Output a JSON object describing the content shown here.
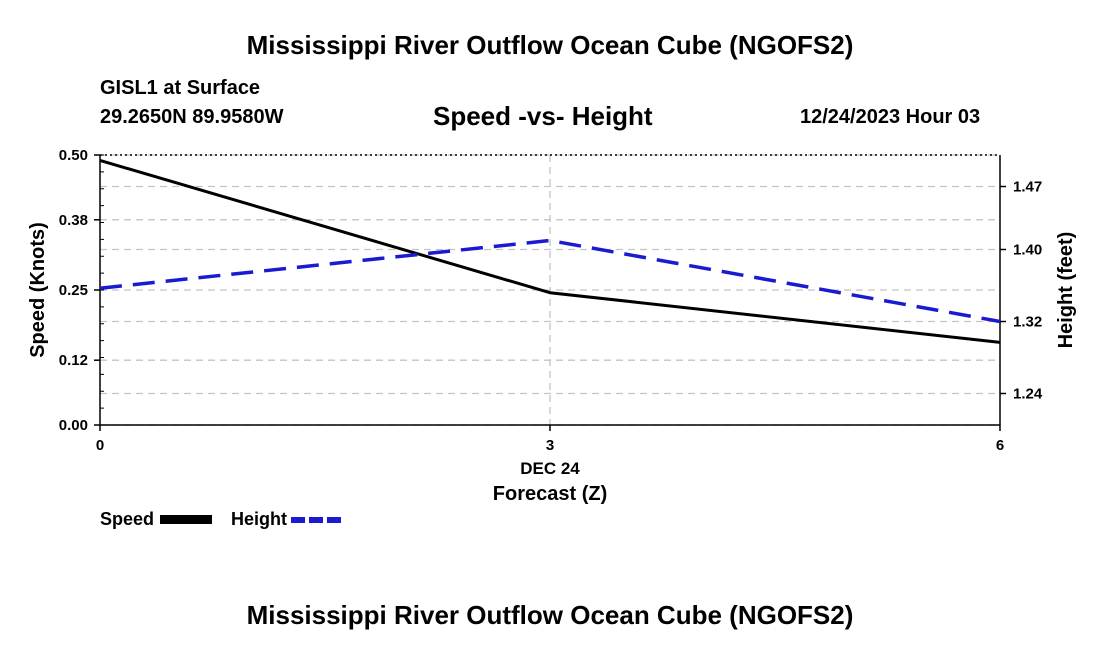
{
  "header": {
    "title": "Mississippi River Outflow Ocean Cube (NGOFS2)",
    "station": "GISL1 at Surface",
    "coords": "29.2650N  89.9580W",
    "subtitle": "Speed -vs- Height",
    "datetime": "12/24/2023 Hour 03"
  },
  "footer": {
    "title": "Mississippi River Outflow Ocean Cube (NGOFS2)"
  },
  "legend": {
    "speed": "Speed",
    "height": "Height"
  },
  "colors": {
    "speed": "#000000",
    "height": "#1a1ad0",
    "grid": "#c4c4c4"
  },
  "chart_data": {
    "type": "line",
    "x": [
      0,
      3,
      6
    ],
    "xticks": [
      "0",
      "3",
      "6"
    ],
    "xdate": "DEC 24",
    "xlabel": "Forecast (Z)",
    "xlim": [
      0,
      6
    ],
    "ylabel_left": "Speed (Knots)",
    "ylabel_right": "Height (feet)",
    "ylim_left": [
      0.0,
      0.5
    ],
    "ylim_right": [
      1.205,
      1.505
    ],
    "yticks_left": [
      "0.00",
      "0.12",
      "0.25",
      "0.38",
      "0.50"
    ],
    "yticks_right": [
      "1.24",
      "1.32",
      "1.40",
      "1.47"
    ],
    "grid": true,
    "series": [
      {
        "name": "Speed",
        "axis": "left",
        "style": "solid",
        "values": [
          0.49,
          0.245,
          0.153
        ]
      },
      {
        "name": "Height",
        "axis": "right",
        "style": "dashed",
        "values": [
          1.357,
          1.41,
          1.32
        ]
      }
    ]
  }
}
